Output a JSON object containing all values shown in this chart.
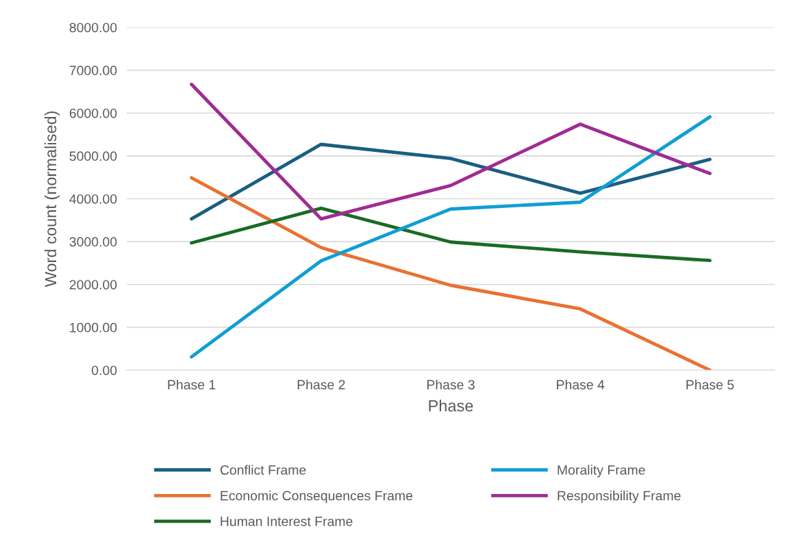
{
  "chart_data": {
    "type": "line",
    "xlabel": "Phase",
    "ylabel": "Word count (normalised)",
    "categories": [
      "Phase 1",
      "Phase 2",
      "Phase 3",
      "Phase 4",
      "Phase 5"
    ],
    "series": [
      {
        "name": "Conflict Frame",
        "color": "#1a5e82",
        "values": [
          3530,
          5270,
          4940,
          4130,
          4920
        ]
      },
      {
        "name": "Economic Consequences Frame",
        "color": "#e97132",
        "values": [
          4490,
          2860,
          1980,
          1430,
          0
        ]
      },
      {
        "name": "Human Interest Frame",
        "color": "#196b24",
        "values": [
          2970,
          3780,
          2990,
          2760,
          2560
        ]
      },
      {
        "name": "Morality Frame",
        "color": "#0f9ed5",
        "values": [
          310,
          2550,
          3760,
          3920,
          5910
        ]
      },
      {
        "name": "Responsibility Frame",
        "color": "#a02b93",
        "values": [
          6670,
          3530,
          4310,
          5740,
          4590
        ]
      }
    ],
    "ylim": [
      0,
      8000
    ],
    "yticks": [
      {
        "value": 0,
        "label": "0.00"
      },
      {
        "value": 1000,
        "label": "1000.00"
      },
      {
        "value": 2000,
        "label": "2000.00"
      },
      {
        "value": 3000,
        "label": "3000.00"
      },
      {
        "value": 4000,
        "label": "4000.00"
      },
      {
        "value": 5000,
        "label": "5000.00"
      },
      {
        "value": 6000,
        "label": "6000.00"
      },
      {
        "value": 7000,
        "label": "7000.00"
      },
      {
        "value": 8000,
        "label": "8000.00"
      }
    ],
    "grid": "y",
    "legend": "bottom",
    "marker": "none",
    "line_style": "solid"
  }
}
